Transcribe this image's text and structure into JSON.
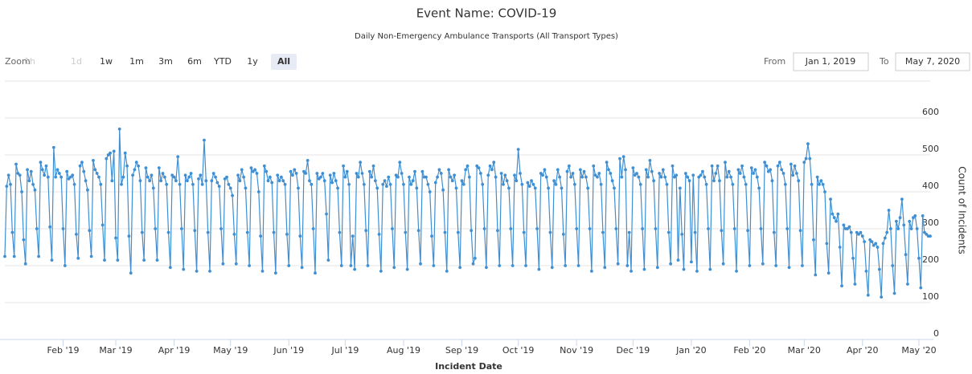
{
  "chart_data": {
    "type": "line",
    "title": "Event Name: COVID-19",
    "subtitle": "Daily Non-Emergency Ambulance Transports (All Transport Types)",
    "range_selector": {
      "label": "Zoom",
      "buttons": [
        "1h",
        "1d",
        "1w",
        "1m",
        "3m",
        "6m",
        "YTD",
        "1y",
        "All"
      ],
      "disabled": [
        0,
        1
      ],
      "selected": 8
    },
    "from_label": "From",
    "from": "Jan 1, 2019",
    "to_label": "To",
    "to": "May 7, 2020",
    "x_label": "Incident Date",
    "y_label": "Count of Incidents",
    "color": "#3f8fd2",
    "grid": true,
    "xlim": [
      0,
      492
    ],
    "xticks": [
      {
        "value": 31,
        "label": "Feb '19"
      },
      {
        "value": 59,
        "label": "Mar '19"
      },
      {
        "value": 90,
        "label": "Apr '19"
      },
      {
        "value": 120,
        "label": "May '19"
      },
      {
        "value": 151,
        "label": "Jun '19"
      },
      {
        "value": 181,
        "label": "Jul '19"
      },
      {
        "value": 212,
        "label": "Aug '19"
      },
      {
        "value": 243,
        "label": "Sep '19"
      },
      {
        "value": 273,
        "label": "Oct '19"
      },
      {
        "value": 304,
        "label": "Nov '19"
      },
      {
        "value": 334,
        "label": "Dec '19"
      },
      {
        "value": 365,
        "label": "Jan '20"
      },
      {
        "value": 396,
        "label": "Feb '20"
      },
      {
        "value": 425,
        "label": "Mar '20"
      },
      {
        "value": 456,
        "label": "Apr '20"
      },
      {
        "value": 486,
        "label": "May '20"
      }
    ],
    "ylim": [
      0,
      700
    ],
    "yticks": [
      0,
      100,
      200,
      300,
      400,
      500,
      600
    ],
    "values": [
      225,
      415,
      445,
      420,
      290,
      225,
      475,
      450,
      445,
      400,
      270,
      205,
      460,
      430,
      455,
      420,
      405,
      300,
      225,
      480,
      460,
      445,
      470,
      440,
      305,
      215,
      520,
      440,
      460,
      450,
      440,
      300,
      200,
      455,
      435,
      440,
      445,
      420,
      285,
      220,
      470,
      480,
      455,
      430,
      405,
      295,
      225,
      485,
      460,
      450,
      440,
      420,
      310,
      215,
      490,
      500,
      505,
      430,
      510,
      275,
      215,
      570,
      420,
      440,
      505,
      470,
      280,
      180,
      445,
      460,
      480,
      470,
      430,
      290,
      215,
      465,
      440,
      430,
      445,
      410,
      300,
      215,
      465,
      430,
      450,
      440,
      420,
      290,
      195,
      445,
      440,
      430,
      495,
      420,
      300,
      190,
      445,
      430,
      440,
      450,
      420,
      295,
      185,
      435,
      445,
      420,
      540,
      430,
      290,
      185,
      430,
      450,
      440,
      425,
      415,
      300,
      205,
      435,
      440,
      420,
      410,
      390,
      285,
      205,
      445,
      430,
      460,
      440,
      410,
      290,
      200,
      465,
      455,
      460,
      450,
      400,
      280,
      185,
      470,
      455,
      430,
      440,
      425,
      290,
      180,
      445,
      430,
      440,
      430,
      420,
      285,
      200,
      455,
      445,
      460,
      450,
      410,
      280,
      195,
      455,
      450,
      485,
      430,
      420,
      300,
      180,
      450,
      435,
      440,
      450,
      430,
      340,
      215,
      445,
      425,
      450,
      430,
      410,
      290,
      200,
      470,
      440,
      455,
      420,
      200,
      280,
      190,
      450,
      440,
      480,
      450,
      420,
      295,
      200,
      455,
      440,
      470,
      430,
      410,
      285,
      185,
      420,
      430,
      415,
      440,
      420,
      300,
      195,
      445,
      440,
      480,
      450,
      420,
      290,
      190,
      440,
      420,
      430,
      455,
      410,
      295,
      205,
      455,
      440,
      440,
      420,
      400,
      280,
      200,
      425,
      440,
      460,
      450,
      405,
      290,
      185,
      460,
      440,
      430,
      445,
      410,
      290,
      195,
      430,
      420,
      460,
      470,
      440,
      295,
      205,
      220,
      470,
      465,
      450,
      420,
      300,
      195,
      445,
      470,
      460,
      480,
      440,
      295,
      200,
      450,
      420,
      445,
      430,
      410,
      300,
      200,
      445,
      430,
      515,
      450,
      420,
      290,
      200,
      425,
      415,
      430,
      420,
      410,
      300,
      190,
      450,
      445,
      460,
      440,
      410,
      290,
      195,
      430,
      420,
      460,
      440,
      410,
      285,
      200,
      455,
      470,
      440,
      450,
      420,
      300,
      200,
      460,
      440,
      455,
      440,
      410,
      300,
      185,
      470,
      445,
      440,
      450,
      420,
      290,
      195,
      480,
      460,
      450,
      430,
      410,
      300,
      205,
      490,
      440,
      495,
      460,
      200,
      290,
      185,
      465,
      445,
      450,
      440,
      420,
      300,
      190,
      460,
      440,
      485,
      455,
      430,
      300,
      195,
      450,
      440,
      460,
      440,
      420,
      290,
      205,
      470,
      440,
      445,
      215,
      410,
      285,
      190,
      450,
      440,
      430,
      210,
      445,
      290,
      185,
      440,
      445,
      455,
      440,
      420,
      300,
      190,
      470,
      430,
      450,
      470,
      430,
      295,
      205,
      480,
      440,
      455,
      440,
      420,
      300,
      185,
      460,
      450,
      470,
      440,
      420,
      295,
      200,
      465,
      450,
      460,
      440,
      410,
      300,
      205,
      480,
      470,
      455,
      460,
      430,
      290,
      200,
      470,
      480,
      460,
      450,
      420,
      300,
      195,
      475,
      445,
      470,
      450,
      430,
      295,
      200,
      480,
      490,
      530,
      490,
      420,
      270,
      175,
      440,
      420,
      430,
      420,
      400,
      260,
      180,
      380,
      340,
      330,
      320,
      340,
      250,
      145,
      310,
      300,
      300,
      305,
      290,
      220,
      150,
      290,
      285,
      290,
      280,
      265,
      185,
      120,
      270,
      265,
      255,
      260,
      250,
      190,
      115,
      260,
      275,
      290,
      350,
      300,
      200,
      125,
      320,
      300,
      330,
      380,
      310,
      230,
      150,
      320,
      300,
      330,
      335,
      300,
      220,
      140,
      335,
      290,
      285,
      280,
      280
    ]
  }
}
